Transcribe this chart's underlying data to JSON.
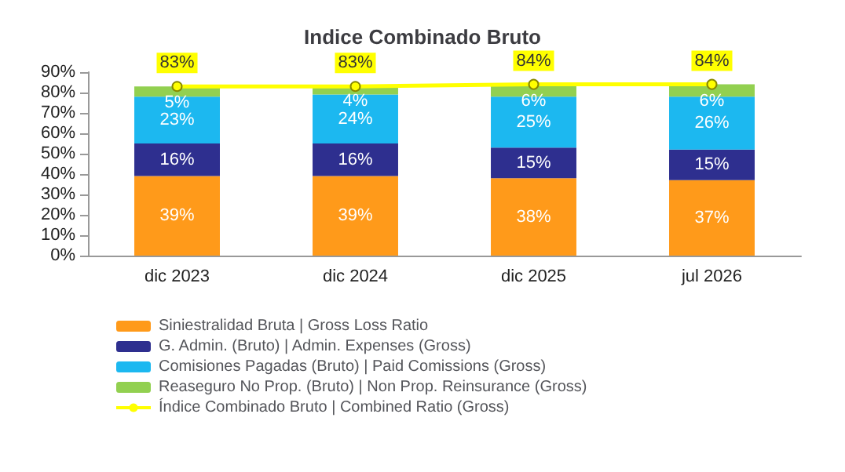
{
  "chart_data": {
    "type": "bar",
    "title": "Indice Combinado Bruto",
    "stacked": true,
    "categories": [
      "dic 2023",
      "dic 2024",
      "dic 2025",
      "jul 2026"
    ],
    "ylim": [
      0,
      90
    ],
    "yticks": [
      {
        "value": 0,
        "label": "0%"
      },
      {
        "value": 10,
        "label": "10%"
      },
      {
        "value": 20,
        "label": "20%"
      },
      {
        "value": 30,
        "label": "30%"
      },
      {
        "value": 40,
        "label": "40%"
      },
      {
        "value": 50,
        "label": "50%"
      },
      {
        "value": 60,
        "label": "60%"
      },
      {
        "value": 70,
        "label": "70%"
      },
      {
        "value": 80,
        "label": "80%"
      },
      {
        "value": 90,
        "label": "90%"
      }
    ],
    "grid": false,
    "legend": "bottom",
    "series": [
      {
        "name": "Siniestralidad Bruta | Gross Loss Ratio",
        "color": "#ff9a1a",
        "values": [
          39,
          39,
          38,
          37
        ],
        "value_labels": [
          "39%",
          "39%",
          "38%",
          "37%"
        ]
      },
      {
        "name": "G. Admin. (Bruto) | Admin. Expenses (Gross)",
        "color": "#2e2f8f",
        "values": [
          16,
          16,
          15,
          15
        ],
        "value_labels": [
          "16%",
          "16%",
          "15%",
          "15%"
        ]
      },
      {
        "name": "Comisiones Pagadas (Bruto) | Paid Comissions (Gross)",
        "color": "#1cb8f0",
        "values": [
          23,
          24,
          25,
          26
        ],
        "value_labels": [
          "23%",
          "24%",
          "25%",
          "26%"
        ]
      },
      {
        "name": "Reaseguro No Prop. (Bruto) | Non Prop. Reinsurance (Gross)",
        "color": "#92d050",
        "values": [
          5,
          4,
          6,
          6
        ],
        "value_labels": [
          "5%",
          "4%",
          "6%",
          "6%"
        ]
      },
      {
        "name": "Índice Combinado Bruto | Combined Ratio (Gross)",
        "type": "line",
        "color": "#ffff00",
        "marker": "circle",
        "values": [
          83,
          83,
          84,
          84
        ],
        "value_labels": [
          "83%",
          "83%",
          "84%",
          "84%"
        ]
      }
    ]
  }
}
